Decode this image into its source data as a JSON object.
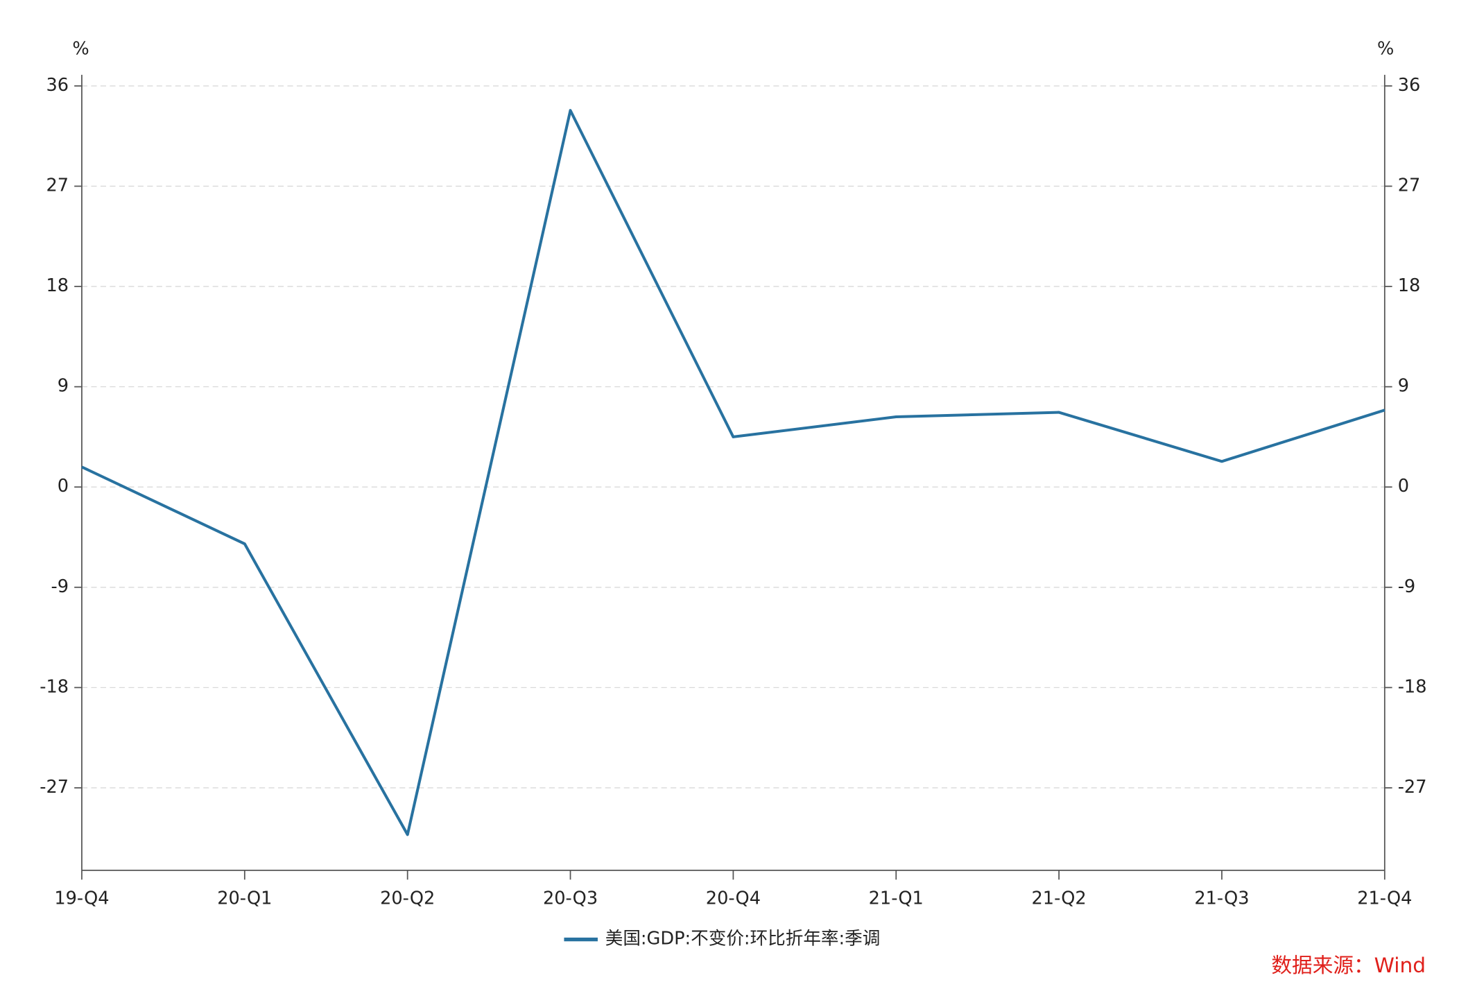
{
  "chart_data": {
    "type": "line",
    "ylabel": "%",
    "y2label": "%",
    "categories": [
      "19-Q4",
      "20-Q1",
      "20-Q2",
      "20-Q3",
      "20-Q4",
      "21-Q1",
      "21-Q2",
      "21-Q3",
      "21-Q4"
    ],
    "series": [
      {
        "name": "美国:GDP:不变价:环比折年率:季调",
        "color": "#2872a0",
        "values": [
          1.8,
          -5.1,
          -31.2,
          33.8,
          4.5,
          6.3,
          6.7,
          2.3,
          6.9
        ]
      }
    ],
    "ylim": [
      -34.4,
      37
    ],
    "yticks": [
      -27,
      -18,
      -9,
      0,
      9,
      18,
      27,
      36
    ],
    "y2lim": [
      -34.4,
      37
    ],
    "y2ticks": [
      -27,
      -18,
      -9,
      0,
      9,
      18,
      27,
      36
    ],
    "grid": true,
    "legend": "bottom",
    "source": "数据来源：Wind"
  }
}
